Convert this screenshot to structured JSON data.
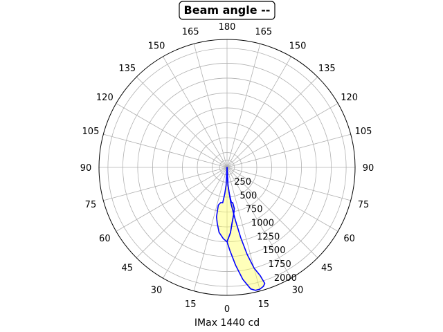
{
  "chart_data": {
    "type": "polar-area",
    "title": "Beam angle --",
    "xlabel": "IMax 1440 cd",
    "angle_tick_labels": [
      "0",
      "15",
      "30",
      "45",
      "60",
      "75",
      "90",
      "105",
      "120",
      "135",
      "150",
      "165",
      "180",
      "165",
      "150",
      "135",
      "120",
      "105",
      "90",
      "75",
      "60",
      "45",
      "30",
      "15"
    ],
    "radial_tick_labels": [
      "250",
      "500",
      "750",
      "1000",
      "1250",
      "1500",
      "1750",
      "2000"
    ],
    "radial_ticks": [
      250,
      500,
      750,
      1000,
      1250,
      1500,
      1750,
      2000
    ],
    "rlim": [
      0,
      2150
    ],
    "grid": true,
    "colors": {
      "curve": "#0000ff",
      "fill": "#ffff66",
      "grid": "#b0b0b0"
    },
    "series": [
      {
        "points": [
          [
            0,
            1250
          ],
          [
            -3,
            1200
          ],
          [
            -7,
            1100
          ],
          [
            -10,
            950
          ],
          [
            -12,
            850
          ],
          [
            -13,
            650
          ],
          [
            -10,
            600
          ],
          [
            -7,
            600
          ],
          [
            -5,
            450
          ],
          [
            -3,
            300
          ],
          [
            0,
            0
          ],
          [
            3,
            300
          ],
          [
            5,
            450
          ],
          [
            7,
            600
          ],
          [
            9,
            600
          ],
          [
            10,
            700
          ],
          [
            8,
            800
          ],
          [
            5,
            950
          ],
          [
            3,
            1100
          ],
          [
            0,
            1250
          ]
        ]
      },
      {
        "points": [
          [
            0,
            0
          ],
          [
            3,
            300
          ],
          [
            6,
            600
          ],
          [
            9,
            900
          ],
          [
            11,
            1200
          ],
          [
            13,
            1500
          ],
          [
            15,
            1750
          ],
          [
            17,
            1900
          ],
          [
            18,
            2050
          ],
          [
            17,
            2090
          ],
          [
            15,
            2120
          ],
          [
            13,
            2120
          ],
          [
            11,
            2080
          ],
          [
            8,
            1900
          ],
          [
            5,
            1650
          ],
          [
            2,
            1400
          ],
          [
            0,
            1250
          ],
          [
            3,
            1100
          ],
          [
            5,
            950
          ],
          [
            8,
            800
          ],
          [
            10,
            700
          ],
          [
            9,
            600
          ],
          [
            7,
            600
          ],
          [
            5,
            450
          ],
          [
            3,
            300
          ],
          [
            0,
            0
          ]
        ]
      }
    ]
  }
}
